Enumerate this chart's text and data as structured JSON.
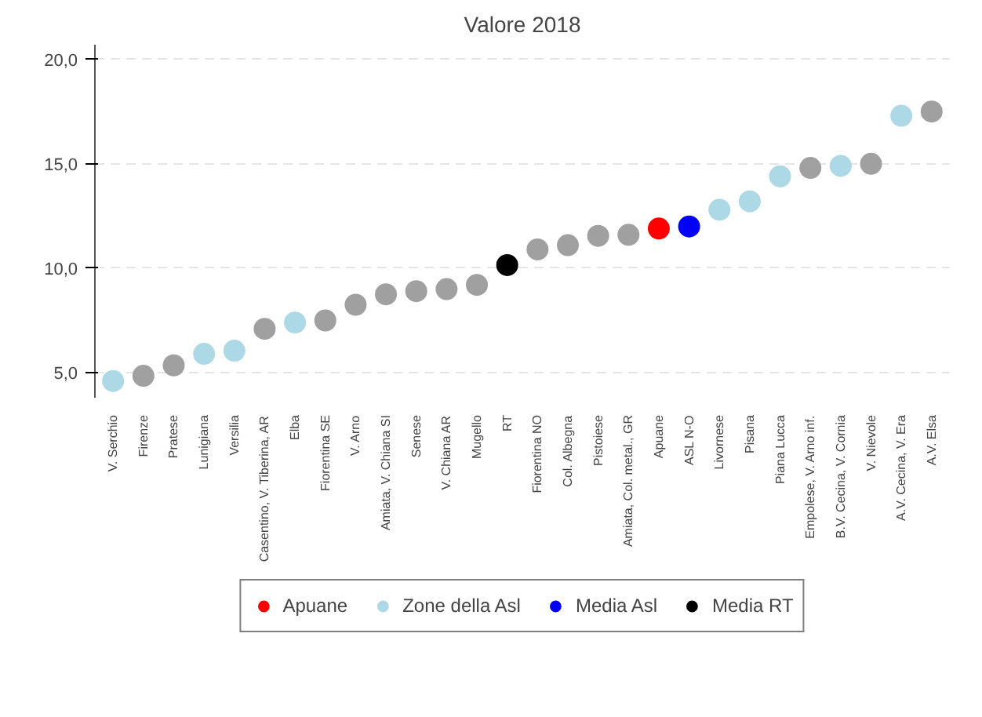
{
  "chart_data": {
    "type": "scatter",
    "title": "Valore 2018",
    "categories": [
      "V. Serchio",
      "Firenze",
      "Pratese",
      "Lunigiana",
      "Versilia",
      "Casentino, V. Tiberina, AR",
      "Elba",
      "Fiorentina SE",
      "V. Arno",
      "Amiata, V. Chiana SI",
      "Senese",
      "V. Chiana AR",
      "Mugello",
      "RT",
      "Fiorentina NO",
      "Col. Albegna",
      "Pistoiese",
      "Amiata, Col. metal., GR",
      "Apuane",
      "ASL N-O",
      "Livornese",
      "Pisana",
      "Piana Lucca",
      "Empolese, V. Arno inf.",
      "B.V. Cecina, V. Cornia",
      "V. Nievole",
      "A.V. Cecina, V. Era",
      "A.V. Elsa"
    ],
    "series": [
      {
        "color": "#a0a0a0",
        "values": [
          null,
          4.85,
          5.35,
          null,
          null,
          7.1,
          null,
          7.5,
          8.25,
          8.75,
          8.9,
          9.0,
          9.2,
          null,
          10.9,
          11.1,
          11.55,
          11.6,
          null,
          null,
          null,
          null,
          null,
          14.8,
          null,
          15.0,
          null,
          17.5
        ]
      },
      {
        "name": "Apuane",
        "color": "#ff0000",
        "values": [
          null,
          null,
          null,
          null,
          null,
          null,
          null,
          null,
          null,
          null,
          null,
          null,
          null,
          null,
          null,
          null,
          null,
          null,
          11.9,
          null,
          null,
          null,
          null,
          null,
          null,
          null,
          null,
          null
        ]
      },
      {
        "name": "Zone della Asl",
        "color": "#add8e6",
        "values": [
          4.6,
          null,
          null,
          5.9,
          6.05,
          null,
          7.4,
          null,
          null,
          null,
          null,
          null,
          null,
          null,
          null,
          null,
          null,
          null,
          null,
          null,
          12.8,
          13.2,
          14.4,
          null,
          14.9,
          null,
          17.3,
          null
        ]
      },
      {
        "name": "Media Asl",
        "color": "#0000ff",
        "values": [
          null,
          null,
          null,
          null,
          null,
          null,
          null,
          null,
          null,
          null,
          null,
          null,
          null,
          null,
          null,
          null,
          null,
          null,
          null,
          12.0,
          null,
          null,
          null,
          null,
          null,
          null,
          null,
          null
        ]
      },
      {
        "name": "Media RT",
        "color": "#000000",
        "values": [
          null,
          null,
          null,
          null,
          null,
          null,
          null,
          null,
          null,
          null,
          null,
          null,
          null,
          10.15,
          null,
          null,
          null,
          null,
          null,
          null,
          null,
          null,
          null,
          null,
          null,
          null,
          null,
          null
        ]
      }
    ],
    "ylim": [
      3.8,
      20.7
    ],
    "yticks": [
      {
        "value": 5,
        "label": "5,0"
      },
      {
        "value": 10,
        "label": "10,0"
      },
      {
        "value": 15,
        "label": "15,0"
      },
      {
        "value": 20,
        "label": "20,0"
      }
    ],
    "grid": "y",
    "legend": "bottom",
    "marker": "circle"
  }
}
